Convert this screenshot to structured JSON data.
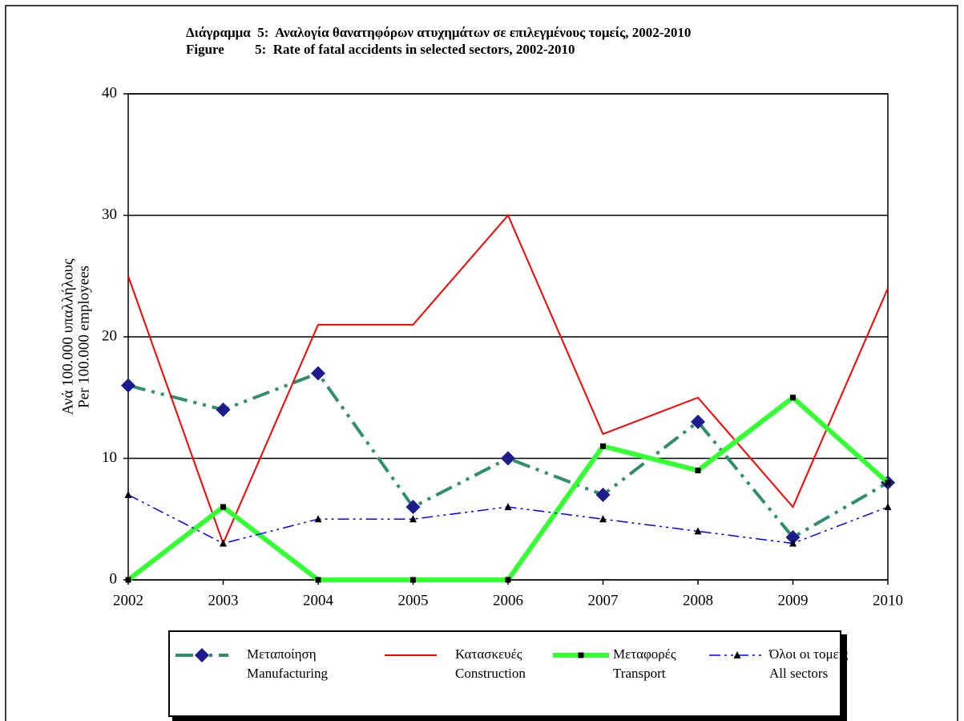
{
  "chart_data": {
    "type": "line",
    "title_lines": [
      "Διάγραμμα  5:  Αναλογία θανατηφόρων ατυχημάτων σε επιλεγμένους τομείς, 2002-2010",
      "Figure         5:  Rate of fatal accidents in selected sectors, 2002-2010"
    ],
    "y_label_lines": [
      "Ανά 100.000 υπαλλήλους",
      "Per 100.000 employees"
    ],
    "categories": [
      "2002",
      "2003",
      "2004",
      "2005",
      "2006",
      "2007",
      "2008",
      "2009",
      "2010"
    ],
    "ylim": [
      0,
      40
    ],
    "yticks": [
      0,
      10,
      20,
      30,
      40
    ],
    "grid": true,
    "series": [
      {
        "name": [
          "Μεταποίηση",
          "Manufacturing"
        ],
        "color": "#2f8f6a",
        "width": 4,
        "dash": "22 8 4 8 4 8",
        "marker": "diamond",
        "marker_color": "#1c1c8c",
        "values": [
          16,
          14,
          17,
          6,
          10,
          7,
          13,
          3.5,
          8
        ]
      },
      {
        "name": [
          "Κατασκευές",
          "Construction"
        ],
        "color": "#ff0000",
        "width": 2,
        "dash": "none",
        "marker": "none",
        "marker_color": "#ff0000",
        "values": [
          25,
          3,
          21,
          21,
          30,
          12,
          15,
          6,
          24
        ]
      },
      {
        "name": [
          "Μεταφορές",
          "Transport"
        ],
        "color": "#33ff33",
        "width": 6,
        "dash": "none",
        "marker": "square",
        "marker_color": "#000000",
        "values": [
          0,
          6,
          0,
          0,
          0,
          11,
          9,
          15,
          8
        ]
      },
      {
        "name": [
          "Όλοι οι τομείς",
          "All sectors"
        ],
        "color": "#0000ff",
        "width": 1.5,
        "dash": "14 5 3 5 3 5",
        "marker": "triangle",
        "marker_color": "#000000",
        "values": [
          7,
          3,
          5,
          5,
          6,
          5,
          4,
          3,
          6
        ]
      }
    ]
  }
}
